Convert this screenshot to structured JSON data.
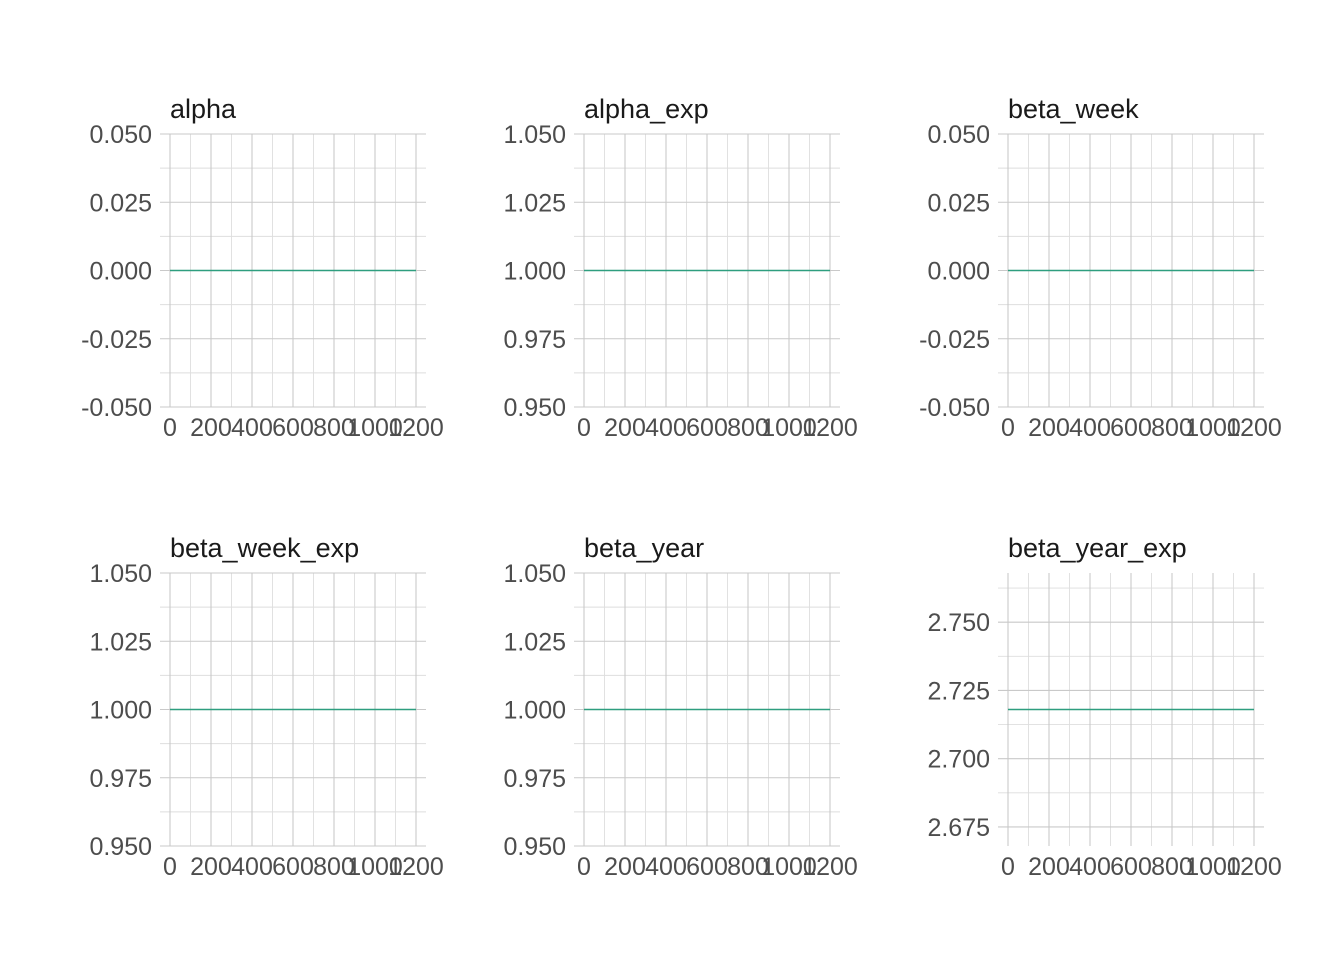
{
  "colors": {
    "series": "#2e9e7f",
    "grid_major": "#c9c9c9",
    "grid_minor": "#dedede",
    "text": "#4d4d4d"
  },
  "chart_data": [
    {
      "type": "line",
      "title": "alpha",
      "x_ticks": [
        0,
        200,
        400,
        600,
        800,
        1000,
        1200
      ],
      "x_tick_labels": [
        "0",
        "200",
        "400",
        "600",
        "800",
        "1000",
        "1200"
      ],
      "xlim": [
        0,
        1200
      ],
      "y_ticks": [
        -0.05,
        -0.025,
        0,
        0.025,
        0.05
      ],
      "y_tick_labels": [
        "-0.050",
        "-0.025",
        "0.000",
        "0.025",
        "0.050"
      ],
      "ylim": [
        -0.05,
        0.05
      ],
      "series": [
        {
          "x": [
            0,
            1200
          ],
          "y": [
            0,
            0
          ]
        }
      ],
      "grid": true
    },
    {
      "type": "line",
      "title": "alpha_exp",
      "x_ticks": [
        0,
        200,
        400,
        600,
        800,
        1000,
        1200
      ],
      "x_tick_labels": [
        "0",
        "200",
        "400",
        "600",
        "800",
        "1000",
        "1200"
      ],
      "xlim": [
        0,
        1200
      ],
      "y_ticks": [
        0.95,
        0.975,
        1,
        1.025,
        1.05
      ],
      "y_tick_labels": [
        "0.950",
        "0.975",
        "1.000",
        "1.025",
        "1.050"
      ],
      "ylim": [
        0.95,
        1.05
      ],
      "series": [
        {
          "x": [
            0,
            1200
          ],
          "y": [
            1,
            1
          ]
        }
      ],
      "grid": true
    },
    {
      "type": "line",
      "title": "beta_week",
      "x_ticks": [
        0,
        200,
        400,
        600,
        800,
        1000,
        1200
      ],
      "x_tick_labels": [
        "0",
        "200",
        "400",
        "600",
        "800",
        "1000",
        "1200"
      ],
      "xlim": [
        0,
        1200
      ],
      "y_ticks": [
        -0.05,
        -0.025,
        0,
        0.025,
        0.05
      ],
      "y_tick_labels": [
        "-0.050",
        "-0.025",
        "0.000",
        "0.025",
        "0.050"
      ],
      "ylim": [
        -0.05,
        0.05
      ],
      "series": [
        {
          "x": [
            0,
            1200
          ],
          "y": [
            0,
            0
          ]
        }
      ],
      "grid": true
    },
    {
      "type": "line",
      "title": "beta_week_exp",
      "x_ticks": [
        0,
        200,
        400,
        600,
        800,
        1000,
        1200
      ],
      "x_tick_labels": [
        "0",
        "200",
        "400",
        "600",
        "800",
        "1000",
        "1200"
      ],
      "xlim": [
        0,
        1200
      ],
      "y_ticks": [
        0.95,
        0.975,
        1,
        1.025,
        1.05
      ],
      "y_tick_labels": [
        "0.950",
        "0.975",
        "1.000",
        "1.025",
        "1.050"
      ],
      "ylim": [
        0.95,
        1.05
      ],
      "series": [
        {
          "x": [
            0,
            1200
          ],
          "y": [
            1,
            1
          ]
        }
      ],
      "grid": true
    },
    {
      "type": "line",
      "title": "beta_year",
      "x_ticks": [
        0,
        200,
        400,
        600,
        800,
        1000,
        1200
      ],
      "x_tick_labels": [
        "0",
        "200",
        "400",
        "600",
        "800",
        "1000",
        "1200"
      ],
      "xlim": [
        0,
        1200
      ],
      "y_ticks": [
        0.95,
        0.975,
        1,
        1.025,
        1.05
      ],
      "y_tick_labels": [
        "0.950",
        "0.975",
        "1.000",
        "1.025",
        "1.050"
      ],
      "ylim": [
        0.95,
        1.05
      ],
      "series": [
        {
          "x": [
            0,
            1200
          ],
          "y": [
            1,
            1
          ]
        }
      ],
      "grid": true
    },
    {
      "type": "line",
      "title": "beta_year_exp",
      "x_ticks": [
        0,
        200,
        400,
        600,
        800,
        1000,
        1200
      ],
      "x_tick_labels": [
        "0",
        "200",
        "400",
        "600",
        "800",
        "1000",
        "1200"
      ],
      "xlim": [
        0,
        1200
      ],
      "y_ticks": [
        2.675,
        2.7,
        2.725,
        2.75
      ],
      "y_tick_labels": [
        "2.675",
        "2.700",
        "2.725",
        "2.750"
      ],
      "ylim": [
        2.668,
        2.768
      ],
      "series": [
        {
          "x": [
            0,
            1200
          ],
          "y": [
            2.718,
            2.718
          ]
        }
      ],
      "grid": true
    }
  ]
}
